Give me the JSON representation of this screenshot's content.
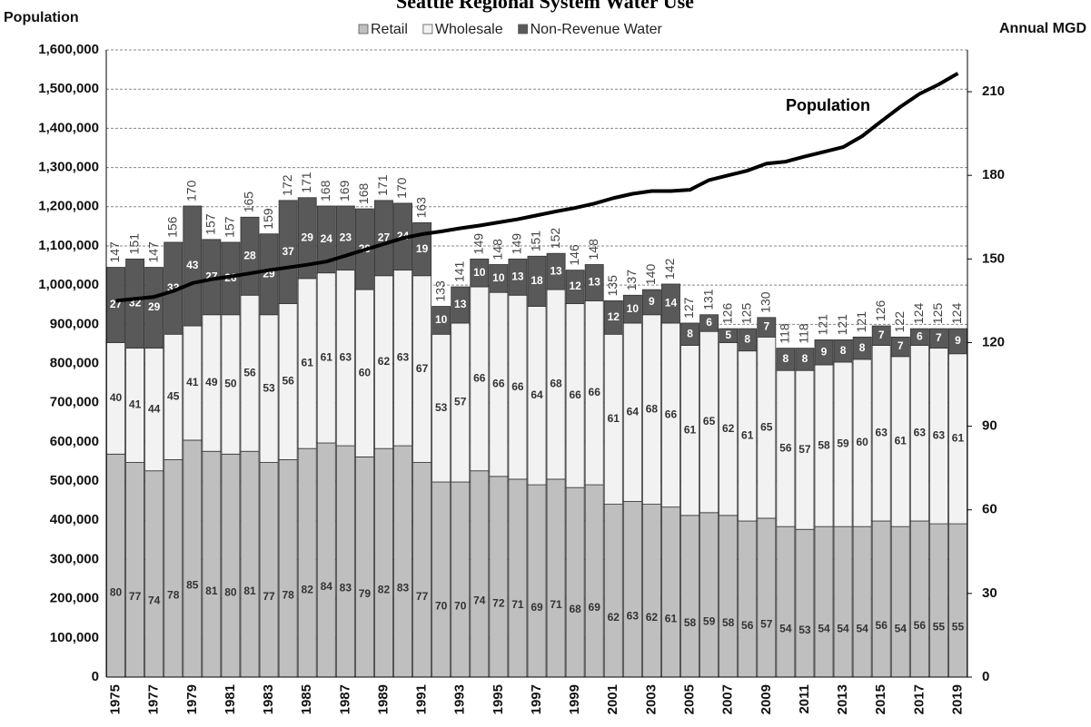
{
  "chart_data": {
    "type": "bar",
    "title": "Seattle Regional System Water Use",
    "y_label": "Population",
    "y2_label": "Annual MGD",
    "annotation": "Population",
    "categories": [
      "1975",
      null,
      "1977",
      null,
      "1979",
      null,
      "1981",
      null,
      "1983",
      null,
      "1985",
      null,
      "1987",
      null,
      "1989",
      null,
      "1991",
      null,
      "1993",
      null,
      "1995",
      null,
      "1997",
      null,
      "1999",
      null,
      "2001",
      null,
      "2003",
      null,
      "2005",
      null,
      "2007",
      null,
      "2009",
      null,
      "2011",
      null,
      "2013",
      null,
      "2015",
      null,
      "2017",
      null,
      "2019"
    ],
    "series": [
      {
        "name": "Retail",
        "color": "#bfbfbf",
        "axis": "y2",
        "type": "bar",
        "values": [
          80,
          77,
          74,
          78,
          85,
          81,
          80,
          81,
          77,
          78,
          82,
          84,
          83,
          79,
          82,
          83,
          77,
          70,
          70,
          74,
          72,
          71,
          69,
          71,
          68,
          69,
          62,
          63,
          62,
          61,
          58,
          59,
          58,
          56,
          57,
          54,
          53,
          54,
          54,
          54,
          56,
          54,
          56,
          55,
          55
        ]
      },
      {
        "name": "Wholesale",
        "color": "#f2f2f2",
        "axis": "y2",
        "type": "bar",
        "values": [
          40,
          41,
          44,
          45,
          41,
          49,
          50,
          56,
          53,
          56,
          61,
          61,
          63,
          60,
          62,
          63,
          67,
          53,
          57,
          66,
          66,
          66,
          64,
          68,
          66,
          66,
          61,
          64,
          68,
          66,
          61,
          65,
          62,
          61,
          65,
          56,
          57,
          58,
          59,
          60,
          63,
          61,
          63,
          63,
          61
        ]
      },
      {
        "name": "Non-Revenue Water",
        "color": "#595959",
        "axis": "y2",
        "type": "bar",
        "values": [
          27,
          32,
          29,
          33,
          43,
          27,
          26,
          28,
          29,
          37,
          29,
          24,
          23,
          29,
          27,
          24,
          19,
          10,
          13,
          10,
          10,
          13,
          18,
          13,
          12,
          13,
          12,
          10,
          9,
          14,
          8,
          6,
          5,
          8,
          7,
          8,
          8,
          9,
          8,
          8,
          7,
          7,
          6,
          7,
          9
        ]
      },
      {
        "name": "Population",
        "color": "#000000",
        "axis": "y",
        "type": "line",
        "values": [
          960000,
          965000,
          970000,
          985000,
          1005000,
          1015000,
          1022000,
          1030000,
          1038000,
          1045000,
          1052000,
          1060000,
          1075000,
          1090000,
          1105000,
          1120000,
          1130000,
          1137000,
          1145000,
          1152000,
          1160000,
          1168000,
          1178000,
          1188000,
          1197000,
          1208000,
          1222000,
          1233000,
          1240000,
          1240000,
          1243000,
          1268000,
          1280000,
          1292000,
          1310000,
          1315000,
          1328000,
          1340000,
          1352000,
          1380000,
          1418000,
          1455000,
          1488000,
          1512000,
          1540000
        ]
      }
    ],
    "totals": [
      147,
      151,
      147,
      156,
      170,
      157,
      157,
      165,
      159,
      172,
      171,
      168,
      169,
      168,
      171,
      170,
      163,
      133,
      141,
      149,
      148,
      149,
      151,
      152,
      146,
      148,
      135,
      137,
      140,
      142,
      127,
      131,
      126,
      125,
      130,
      118,
      118,
      121,
      121,
      121,
      126,
      122,
      124,
      125,
      124
    ],
    "ylim": [
      0,
      1600000
    ],
    "yticks": [
      0,
      {
        "value": 100000,
        "label": "100,000"
      },
      {
        "value": 200000,
        "label": "200,000"
      },
      {
        "value": 300000,
        "label": "300,000"
      },
      {
        "value": 400000,
        "label": "400,000"
      },
      {
        "value": 500000,
        "label": "500,000"
      },
      {
        "value": 600000,
        "label": "600,000"
      },
      {
        "value": 700000,
        "label": "700,000"
      },
      {
        "value": 800000,
        "label": "800,000"
      },
      {
        "value": 900000,
        "label": "900,000"
      },
      {
        "value": 1000000,
        "label": "1,000,000"
      },
      {
        "value": 1100000,
        "label": "1,100,000"
      },
      {
        "value": 1200000,
        "label": "1,200,000"
      },
      {
        "value": 1300000,
        "label": "1,300,000"
      },
      {
        "value": 1400000,
        "label": "1,400,000"
      },
      {
        "value": 1500000,
        "label": "1,500,000"
      },
      {
        "value": 1600000,
        "label": "1,600,000"
      }
    ],
    "y2lim": [
      0,
      225
    ],
    "y2ticks": [
      0,
      30,
      60,
      90,
      120,
      150,
      180,
      210
    ],
    "grid": true,
    "legend": "top"
  }
}
